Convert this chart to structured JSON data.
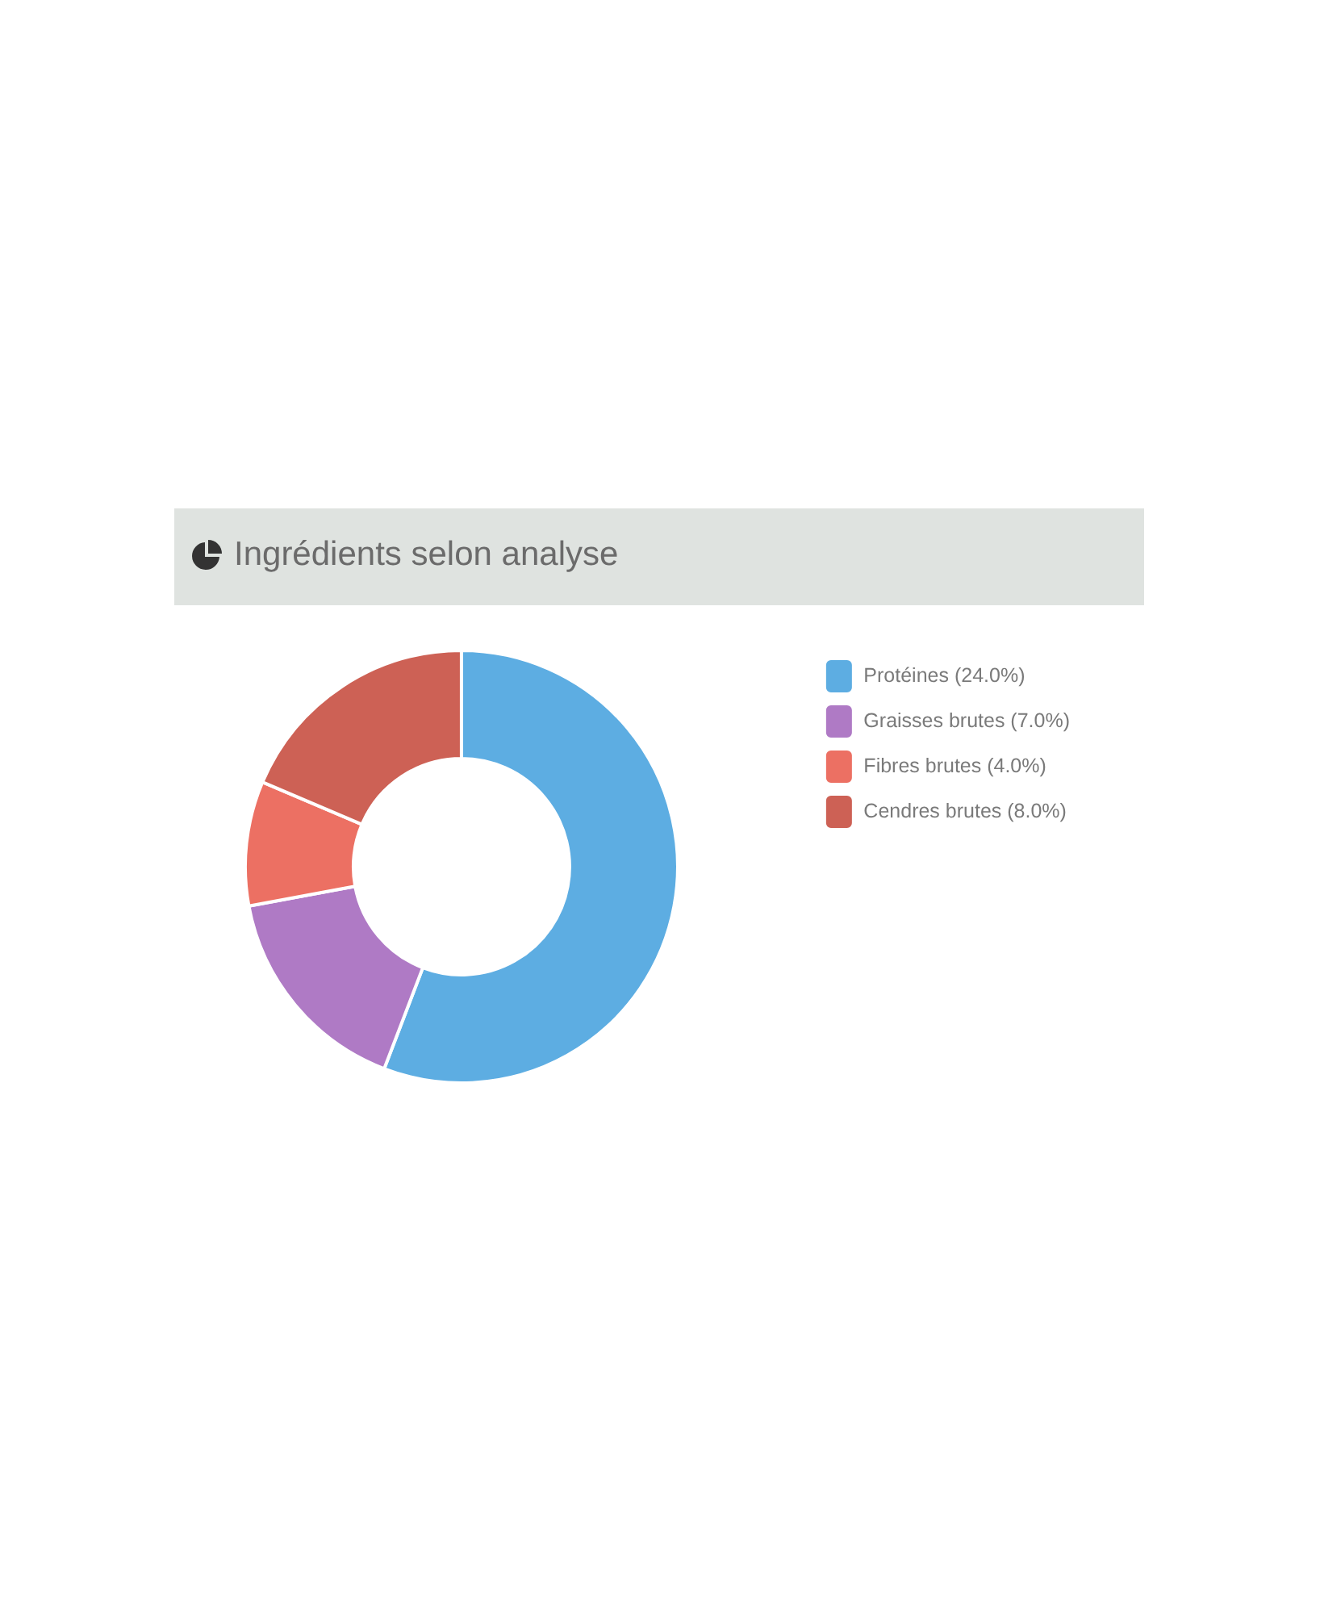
{
  "chart_data": {
    "type": "donut",
    "title": "Ingrédients selon analyse",
    "categories": [
      "Protéines (24.0%)",
      "Graisses brutes (7.0%)",
      "Fibres brutes (4.0%)",
      "Cendres brutes (8.0%)"
    ],
    "values": [
      24,
      7,
      4,
      8
    ],
    "colors": [
      "#5dade2",
      "#af7ac5",
      "#ec7063",
      "#cd6155"
    ],
    "legend": "top right"
  }
}
